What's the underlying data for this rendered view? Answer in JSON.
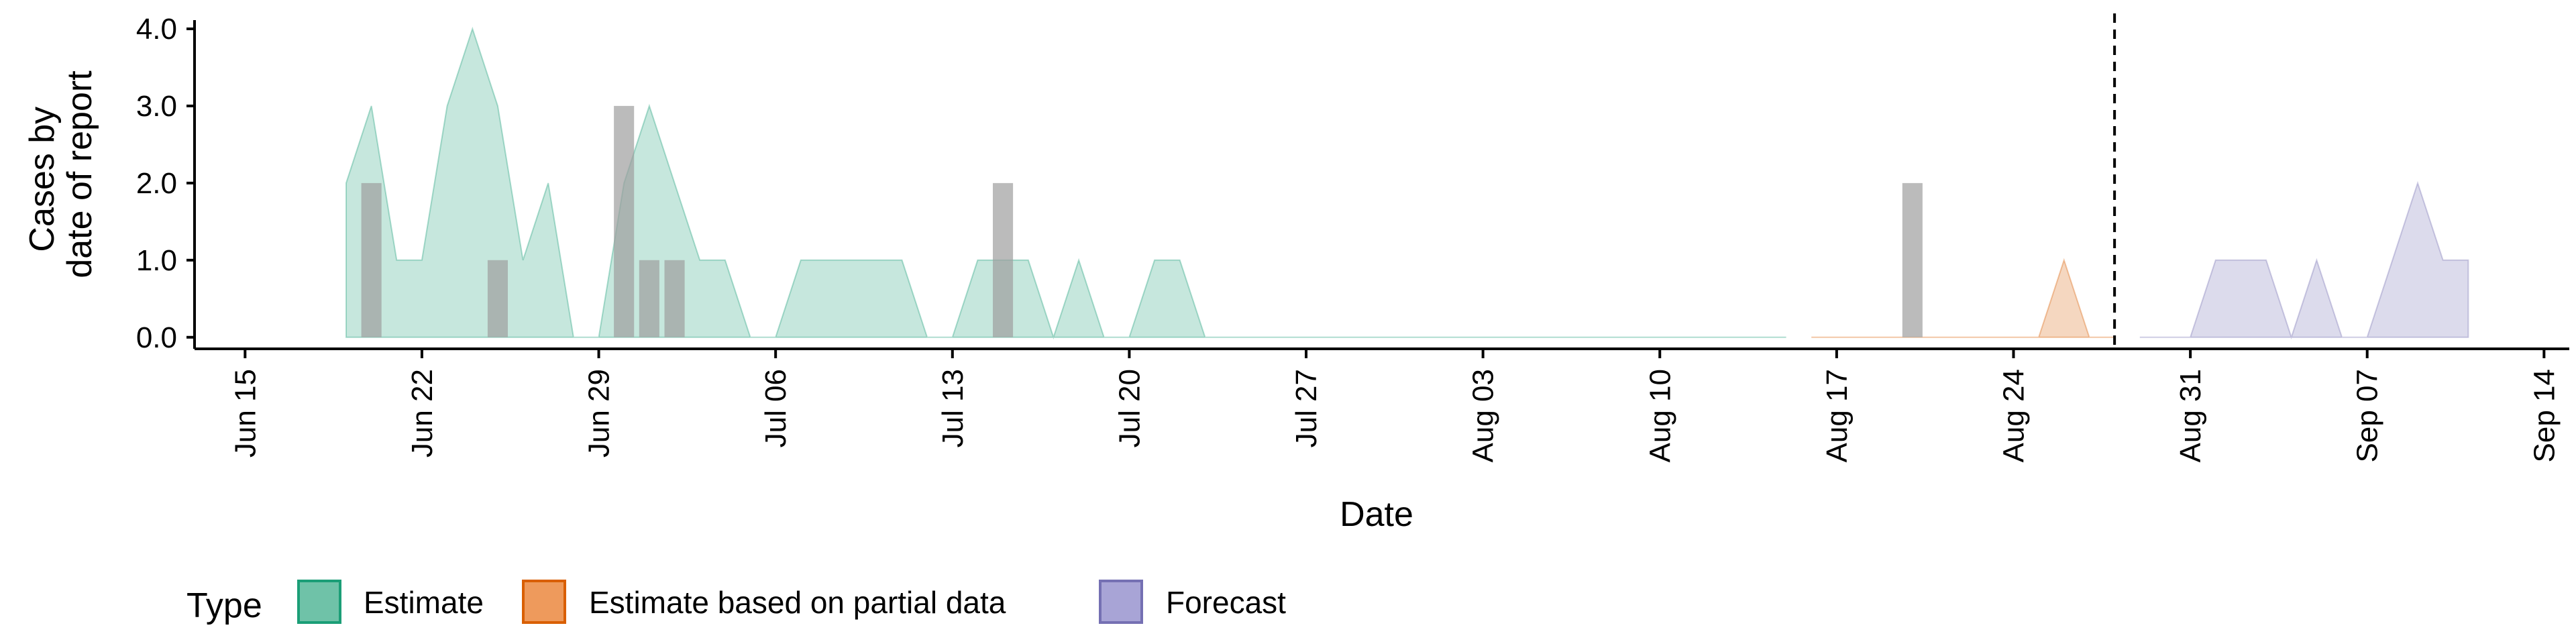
{
  "chart_data": {
    "type": "area",
    "xlabel": "Date",
    "ylabel": [
      "Cases by",
      "date of report"
    ],
    "ylim": [
      -0.15,
      4.2
    ],
    "y_ticks": [
      0,
      1,
      2,
      3,
      4
    ],
    "y_tick_labels": [
      "0.0",
      "1.0",
      "2.0",
      "3.0",
      "4.0"
    ],
    "xlim": [
      "2020-06-13",
      "2020-09-15"
    ],
    "x_ticks": [
      "2020-06-15",
      "2020-06-22",
      "2020-06-29",
      "2020-07-06",
      "2020-07-13",
      "2020-07-20",
      "2020-07-27",
      "2020-08-03",
      "2020-08-10",
      "2020-08-17",
      "2020-08-24",
      "2020-08-31",
      "2020-09-07",
      "2020-09-14"
    ],
    "x_tick_labels": [
      "Jun 15",
      "Jun 22",
      "Jun 29",
      "Jul 06",
      "Jul 13",
      "Jul 20",
      "Jul 27",
      "Aug 03",
      "Aug 10",
      "Aug 17",
      "Aug 24",
      "Aug 31",
      "Sep 07",
      "Sep 14"
    ],
    "vline_date": "2020-08-28",
    "series": [
      {
        "name": "Estimate",
        "color": "#1B9E77",
        "points": [
          [
            "2020-06-19",
            2
          ],
          [
            "2020-06-20",
            3
          ],
          [
            "2020-06-21",
            1
          ],
          [
            "2020-06-22",
            1
          ],
          [
            "2020-06-23",
            3
          ],
          [
            "2020-06-24",
            4
          ],
          [
            "2020-06-25",
            3
          ],
          [
            "2020-06-26",
            1
          ],
          [
            "2020-06-27",
            2
          ],
          [
            "2020-06-28",
            0
          ],
          [
            "2020-06-29",
            0
          ],
          [
            "2020-06-30",
            2
          ],
          [
            "2020-07-01",
            3
          ],
          [
            "2020-07-02",
            2
          ],
          [
            "2020-07-03",
            1
          ],
          [
            "2020-07-04",
            1
          ],
          [
            "2020-07-05",
            0
          ],
          [
            "2020-07-06",
            0
          ],
          [
            "2020-07-07",
            1
          ],
          [
            "2020-07-08",
            1
          ],
          [
            "2020-07-09",
            1
          ],
          [
            "2020-07-10",
            1
          ],
          [
            "2020-07-11",
            1
          ],
          [
            "2020-07-12",
            0
          ],
          [
            "2020-07-13",
            0
          ],
          [
            "2020-07-14",
            1
          ],
          [
            "2020-07-15",
            1
          ],
          [
            "2020-07-16",
            1
          ],
          [
            "2020-07-17",
            0
          ],
          [
            "2020-07-18",
            1
          ],
          [
            "2020-07-19",
            0
          ],
          [
            "2020-07-20",
            0
          ],
          [
            "2020-07-21",
            1
          ],
          [
            "2020-07-22",
            1
          ],
          [
            "2020-07-23",
            0
          ],
          [
            "2020-07-24",
            0
          ],
          [
            "2020-07-25",
            0
          ],
          [
            "2020-07-26",
            0
          ],
          [
            "2020-07-27",
            0
          ],
          [
            "2020-07-28",
            0
          ],
          [
            "2020-07-29",
            0
          ],
          [
            "2020-07-30",
            0
          ],
          [
            "2020-07-31",
            0
          ],
          [
            "2020-08-01",
            0
          ],
          [
            "2020-08-02",
            0
          ],
          [
            "2020-08-03",
            0
          ],
          [
            "2020-08-04",
            0
          ],
          [
            "2020-08-05",
            0
          ],
          [
            "2020-08-06",
            0
          ],
          [
            "2020-08-07",
            0
          ],
          [
            "2020-08-08",
            0
          ],
          [
            "2020-08-09",
            0
          ],
          [
            "2020-08-10",
            0
          ],
          [
            "2020-08-11",
            0
          ],
          [
            "2020-08-12",
            0
          ],
          [
            "2020-08-13",
            0
          ],
          [
            "2020-08-14",
            0
          ],
          [
            "2020-08-15",
            0
          ]
        ]
      },
      {
        "name": "Estimate based on partial data",
        "color": "#D95F02",
        "points": [
          [
            "2020-08-16",
            0
          ],
          [
            "2020-08-17",
            0
          ],
          [
            "2020-08-18",
            0
          ],
          [
            "2020-08-19",
            0
          ],
          [
            "2020-08-20",
            0
          ],
          [
            "2020-08-21",
            0
          ],
          [
            "2020-08-22",
            0
          ],
          [
            "2020-08-23",
            0
          ],
          [
            "2020-08-24",
            0
          ],
          [
            "2020-08-25",
            0
          ],
          [
            "2020-08-26",
            1
          ],
          [
            "2020-08-27",
            0
          ],
          [
            "2020-08-28",
            0
          ]
        ]
      },
      {
        "name": "Forecast",
        "color": "#7570B3",
        "points": [
          [
            "2020-08-29",
            0
          ],
          [
            "2020-08-30",
            0
          ],
          [
            "2020-08-31",
            0
          ],
          [
            "2020-09-01",
            1
          ],
          [
            "2020-09-02",
            1
          ],
          [
            "2020-09-03",
            1
          ],
          [
            "2020-09-04",
            0
          ],
          [
            "2020-09-05",
            1
          ],
          [
            "2020-09-06",
            0
          ],
          [
            "2020-09-07",
            0
          ],
          [
            "2020-09-08",
            1
          ],
          [
            "2020-09-09",
            2
          ],
          [
            "2020-09-10",
            1
          ],
          [
            "2020-09-11",
            1
          ]
        ]
      }
    ],
    "bars": {
      "color": "#9E9E9E",
      "points": [
        [
          "2020-06-20",
          2
        ],
        [
          "2020-06-25",
          1
        ],
        [
          "2020-06-30",
          3
        ],
        [
          "2020-07-01",
          1
        ],
        [
          "2020-07-02",
          1
        ],
        [
          "2020-07-15",
          2
        ],
        [
          "2020-08-20",
          2
        ]
      ]
    },
    "legend": {
      "title": "Type",
      "position": "bottom-left",
      "items": [
        {
          "label": "Estimate",
          "fill": "#6FC2A8",
          "stroke": "#1B9E77"
        },
        {
          "label": "Estimate based on partial data",
          "fill": "#EE9A5C",
          "stroke": "#D95F02"
        },
        {
          "label": "Forecast",
          "fill": "#A8A4D6",
          "stroke": "#7570B3"
        }
      ]
    }
  }
}
